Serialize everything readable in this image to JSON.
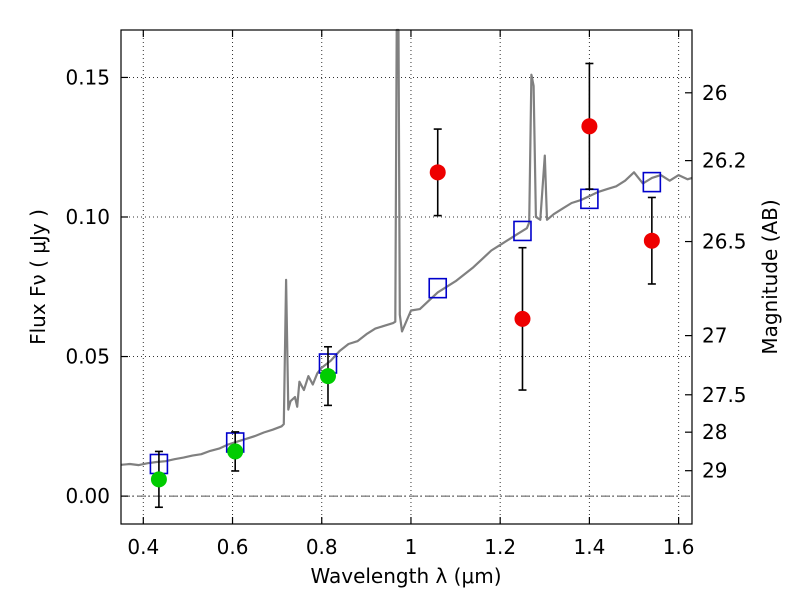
{
  "chart_data": {
    "type": "scatter",
    "title": "",
    "xlabel": "Wavelength  λ (μm)",
    "ylabel": "Flux  Fν  ( μJy )",
    "ylabel_right": "Magnitude (AB)",
    "xlim": [
      0.35,
      1.63
    ],
    "ylim": [
      -0.01,
      0.167
    ],
    "grid": true,
    "x_ticks": [
      0.4,
      0.6,
      0.8,
      1.0,
      1.2,
      1.4,
      1.6
    ],
    "x_tick_labels": [
      "0.4",
      "0.6",
      "0.8",
      "1",
      "1.2",
      "1.4",
      "1.6"
    ],
    "y_ticks": [
      0.0,
      0.05,
      0.1,
      0.15
    ],
    "y_tick_labels": [
      "0.00",
      "0.05",
      "0.10",
      "0.15"
    ],
    "right_ticks": [
      {
        "label": "26",
        "flux": 0.1445
      },
      {
        "label": "26.2",
        "flux": 0.1202
      },
      {
        "label": "26.5",
        "flux": 0.0912
      },
      {
        "label": "27",
        "flux": 0.0575
      },
      {
        "label": "27.5",
        "flux": 0.0363
      },
      {
        "label": "28",
        "flux": 0.0229
      },
      {
        "label": "29",
        "flux": 0.0091
      }
    ],
    "series": [
      {
        "kind": "spectrum",
        "color": "#808080",
        "points": [
          [
            0.35,
            0.0112
          ],
          [
            0.37,
            0.0115
          ],
          [
            0.39,
            0.0111
          ],
          [
            0.41,
            0.0118
          ],
          [
            0.43,
            0.0122
          ],
          [
            0.45,
            0.0125
          ],
          [
            0.47,
            0.0132
          ],
          [
            0.49,
            0.0138
          ],
          [
            0.51,
            0.0145
          ],
          [
            0.53,
            0.015
          ],
          [
            0.55,
            0.0162
          ],
          [
            0.57,
            0.017
          ],
          [
            0.59,
            0.0185
          ],
          [
            0.61,
            0.0195
          ],
          [
            0.63,
            0.0205
          ],
          [
            0.65,
            0.0215
          ],
          [
            0.67,
            0.0228
          ],
          [
            0.69,
            0.0238
          ],
          [
            0.71,
            0.025
          ],
          [
            0.715,
            0.0258
          ],
          [
            0.72,
            0.0775
          ],
          [
            0.725,
            0.031
          ],
          [
            0.73,
            0.034
          ],
          [
            0.74,
            0.0355
          ],
          [
            0.745,
            0.032
          ],
          [
            0.75,
            0.041
          ],
          [
            0.76,
            0.038
          ],
          [
            0.77,
            0.043
          ],
          [
            0.78,
            0.04
          ],
          [
            0.79,
            0.044
          ],
          [
            0.8,
            0.046
          ],
          [
            0.82,
            0.0485
          ],
          [
            0.84,
            0.052
          ],
          [
            0.86,
            0.0545
          ],
          [
            0.88,
            0.0555
          ],
          [
            0.9,
            0.058
          ],
          [
            0.92,
            0.06
          ],
          [
            0.94,
            0.061
          ],
          [
            0.96,
            0.062
          ],
          [
            0.965,
            0.0625
          ],
          [
            0.968,
            0.167
          ],
          [
            0.972,
            0.167
          ],
          [
            0.975,
            0.065
          ],
          [
            0.98,
            0.059
          ],
          [
            1.0,
            0.0665
          ],
          [
            1.02,
            0.067
          ],
          [
            1.04,
            0.07
          ],
          [
            1.06,
            0.073
          ],
          [
            1.08,
            0.075
          ],
          [
            1.1,
            0.077
          ],
          [
            1.12,
            0.0795
          ],
          [
            1.14,
            0.082
          ],
          [
            1.16,
            0.085
          ],
          [
            1.18,
            0.088
          ],
          [
            1.2,
            0.09
          ],
          [
            1.22,
            0.092
          ],
          [
            1.24,
            0.094
          ],
          [
            1.26,
            0.096
          ],
          [
            1.265,
            0.098
          ],
          [
            1.27,
            0.151
          ],
          [
            1.275,
            0.147
          ],
          [
            1.28,
            0.1
          ],
          [
            1.29,
            0.099
          ],
          [
            1.3,
            0.122
          ],
          [
            1.305,
            0.099
          ],
          [
            1.32,
            0.101
          ],
          [
            1.34,
            0.103
          ],
          [
            1.36,
            0.105
          ],
          [
            1.38,
            0.106
          ],
          [
            1.4,
            0.1075
          ],
          [
            1.42,
            0.109
          ],
          [
            1.44,
            0.11
          ],
          [
            1.46,
            0.111
          ],
          [
            1.48,
            0.113
          ],
          [
            1.5,
            0.116
          ],
          [
            1.52,
            0.112
          ],
          [
            1.54,
            0.114
          ],
          [
            1.56,
            0.115
          ],
          [
            1.58,
            0.113
          ],
          [
            1.6,
            0.115
          ],
          [
            1.62,
            0.1135
          ],
          [
            1.63,
            0.114
          ]
        ]
      },
      {
        "kind": "model-photometry",
        "marker": "open-square",
        "color": "#0000cc",
        "points": [
          [
            0.435,
            0.0115
          ],
          [
            0.606,
            0.0192
          ],
          [
            0.814,
            0.0475
          ],
          [
            1.06,
            0.0745
          ],
          [
            1.25,
            0.095
          ],
          [
            1.4,
            0.1065
          ],
          [
            1.54,
            0.1125
          ]
        ]
      },
      {
        "kind": "observed-photometry",
        "marker": "filled-circle",
        "points": [
          {
            "x": 0.435,
            "y": 0.006,
            "err": 0.01,
            "color": "#00cc00"
          },
          {
            "x": 0.606,
            "y": 0.016,
            "err": 0.007,
            "color": "#00cc00"
          },
          {
            "x": 0.814,
            "y": 0.043,
            "err": 0.0105,
            "color": "#00cc00"
          },
          {
            "x": 1.06,
            "y": 0.116,
            "err": 0.0155,
            "color": "#ee0000"
          },
          {
            "x": 1.25,
            "y": 0.0635,
            "err": 0.0255,
            "color": "#ee0000"
          },
          {
            "x": 1.4,
            "y": 0.1325,
            "err": 0.0225,
            "color": "#ee0000"
          },
          {
            "x": 1.54,
            "y": 0.0915,
            "err": 0.0155,
            "color": "#ee0000"
          }
        ]
      }
    ],
    "reference_line": {
      "y": 0.0,
      "style": "dash-dot"
    }
  }
}
